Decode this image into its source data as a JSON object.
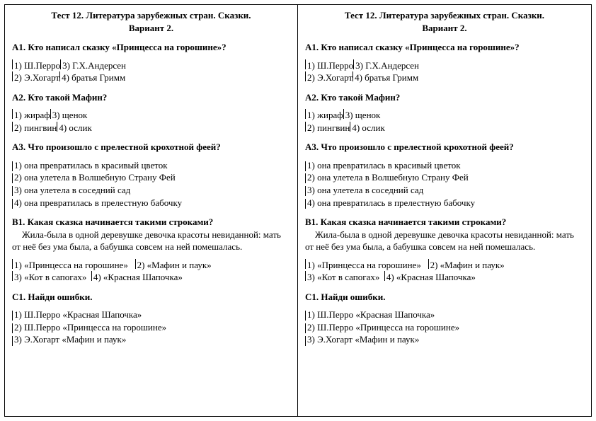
{
  "page": {
    "background_color": "#ffffff",
    "text_color": "#000000",
    "border_color": "#000000",
    "font_family": "Times New Roman",
    "base_font_size_pt": 10
  },
  "heading": {
    "line1": "Тест 12. Литература зарубежных стран. Сказки.",
    "line2": "Вариант 2."
  },
  "questions": {
    "a1": {
      "label": "А1.",
      "text": "Кто написал сказку «Принцесса на горошине»?",
      "row1_a": "1) Ш.Перро",
      "row1_b": "3) Г.Х.Андерсен",
      "row2_a": "2) Э.Хогарт",
      "row2_b": "4) братья Гримм"
    },
    "a2": {
      "label": "А2.",
      "text": "Кто такой Мафин?",
      "row1_a": "1) жираф",
      "row1_b": "3) щенок",
      "row2_a": "2) пингвин",
      "row2_b": "4) ослик"
    },
    "a3": {
      "label": "А3.",
      "text": "Что произошло с прелестной крохотной феей?",
      "o1": "1) она превратилась в красивый цветок",
      "o2": "2) она улетела в Волшебную Страну Фей",
      "o3": "3) она улетела в соседний сад",
      "o4": "4) она превратилась в прелестную бабочку"
    },
    "b1": {
      "label": "В1.",
      "text": "Какая сказка начинается такими строками?",
      "passage": "Жила-была в одной деревушке девочка красоты невиданной: мать от неё без ума была, а бабушка совсем на ней помешалась.",
      "row1_a": "1) «Принцесса на горошине»",
      "row1_b": "2) «Мафин и паук»",
      "row2_a": "3) «Кот в сапогах»",
      "row2_b": "4) «Красная Шапочка»"
    },
    "c1": {
      "label": "С1.",
      "text": "Найди ошибки.",
      "o1": "1) Ш.Перро «Красная Шапочка»",
      "o2": "2) Ш.Перро «Принцесса на горошине»",
      "o3": "3) Э.Хогарт «Мафин и паук»"
    }
  }
}
